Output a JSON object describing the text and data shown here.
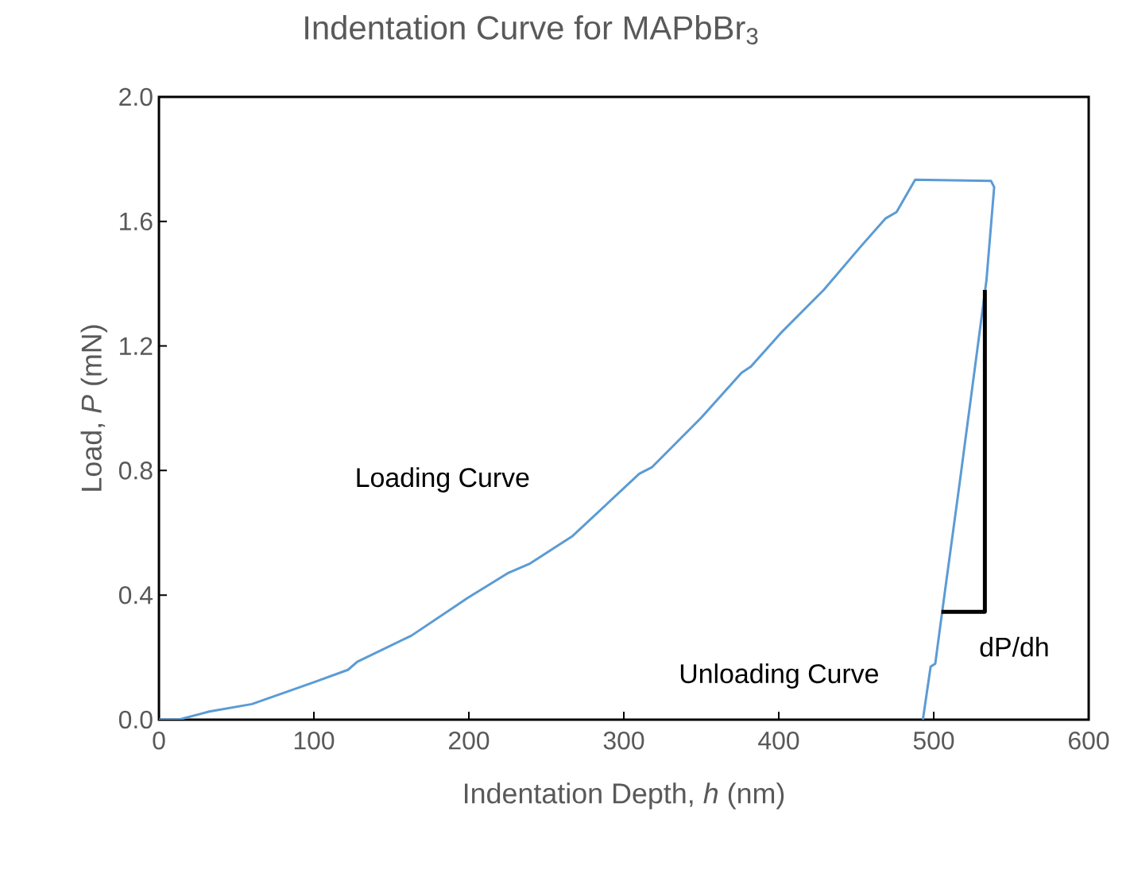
{
  "chart_data": {
    "type": "line",
    "title": "Indentation Curve for MAPbBr$_{3}$",
    "xlabel": "Indentation Depth, *h* (nm)",
    "ylabel": "Load, *P* (mN)",
    "xlim": [
      0,
      600
    ],
    "xticks": [
      0,
      100,
      200,
      300,
      400,
      500,
      600
    ],
    "ylim": [
      0,
      2.0
    ],
    "yticks": [
      {
        "value": 0,
        "label": "0.0"
      },
      {
        "value": 0.4,
        "label": "0.4"
      },
      {
        "value": 0.8,
        "label": "0.8"
      },
      {
        "value": 1.2,
        "label": "1.2"
      },
      {
        "value": 1.6,
        "label": "1.6"
      },
      {
        "value": 2.0,
        "label": "2.0"
      }
    ],
    "grid": false,
    "series": [
      {
        "color": "#5b9bd5",
        "x": [
          0,
          12.7,
          32.5,
          60,
          100,
          122,
          128,
          163,
          199,
          225,
          239,
          267,
          310,
          318,
          350,
          376,
          382,
          401,
          429,
          453,
          469,
          476,
          488,
          537,
          539,
          534,
          517,
          505,
          501,
          498,
          493
        ],
        "values": [
          0,
          0,
          0.026,
          0.05,
          0.12,
          0.16,
          0.186,
          0.27,
          0.39,
          0.47,
          0.5,
          0.59,
          0.79,
          0.81,
          0.97,
          1.114,
          1.134,
          1.24,
          1.38,
          1.52,
          1.61,
          1.63,
          1.734,
          1.73,
          1.71,
          1.41,
          0.77,
          0.33,
          0.18,
          0.17,
          0
        ]
      },
      {
        "type": "line",
        "color": "#000000",
        "x": [
          505,
          533,
          533
        ],
        "values": [
          0.346,
          0.346,
          1.38
        ]
      }
    ],
    "annotations": [
      "Loading Curve",
      "Unloading Curve",
      "dP/dh"
    ]
  }
}
